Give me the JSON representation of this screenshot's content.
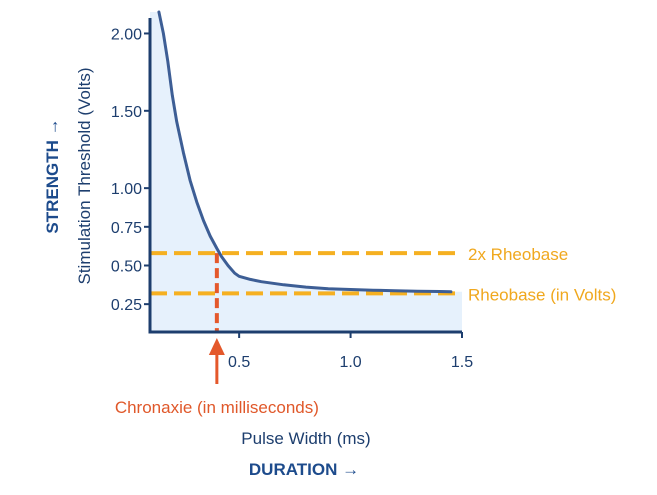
{
  "colors": {
    "curve": "#3d5e95",
    "area": "#e6f1fc",
    "axis": "#1d3e6e",
    "rheobase": "#f5b021",
    "chronaxie": "#e4582b",
    "strong_title": "#1d4b8c"
  },
  "chart_data": {
    "type": "line",
    "xlabel": "Pulse Width (ms)",
    "ylabel": "Stimulation Threshold (Volts)",
    "x_axis_word": "DURATION →",
    "y_axis_word": "STRENGTH →",
    "xlim": [
      0.1,
      1.5
    ],
    "ylim": [
      0.07,
      2.1
    ],
    "x_ticks": [
      {
        "value": 0.5,
        "label": "0.5"
      },
      {
        "value": 1.0,
        "label": "1.0"
      },
      {
        "value": 1.5,
        "label": "1.5"
      }
    ],
    "y_ticks": [
      {
        "value": 0.25,
        "label": "0.25"
      },
      {
        "value": 0.5,
        "label": "0.50"
      },
      {
        "value": 0.75,
        "label": "0.75"
      },
      {
        "value": 1.0,
        "label": "1.00"
      },
      {
        "value": 1.5,
        "label": "1.50"
      },
      {
        "value": 2.0,
        "label": "2.00"
      }
    ],
    "grid": false,
    "area_fill": true,
    "series": [
      {
        "x": [
          0.14,
          0.16,
          0.18,
          0.2,
          0.22,
          0.25,
          0.28,
          0.31,
          0.34,
          0.37,
          0.4,
          0.42,
          0.45,
          0.48,
          0.5,
          0.55,
          0.6,
          0.7,
          0.8,
          0.9,
          1.0,
          1.1,
          1.2,
          1.3,
          1.4,
          1.45
        ],
        "y": [
          2.14,
          2.0,
          1.82,
          1.6,
          1.43,
          1.23,
          1.05,
          0.91,
          0.79,
          0.69,
          0.61,
          0.56,
          0.5,
          0.45,
          0.43,
          0.41,
          0.395,
          0.375,
          0.36,
          0.35,
          0.345,
          0.34,
          0.337,
          0.334,
          0.332,
          0.33
        ]
      }
    ],
    "reference_lines": [
      {
        "axis": "y",
        "value": 0.58,
        "label": "2x Rheobase",
        "color": "#f5b021"
      },
      {
        "axis": "y",
        "value": 0.32,
        "label": "Rheobase (in Volts)",
        "color": "#f5b021"
      }
    ],
    "chronaxie": {
      "x": 0.4,
      "y": 0.58,
      "label": "Chronaxie (in milliseconds)",
      "color": "#e4582b"
    }
  }
}
